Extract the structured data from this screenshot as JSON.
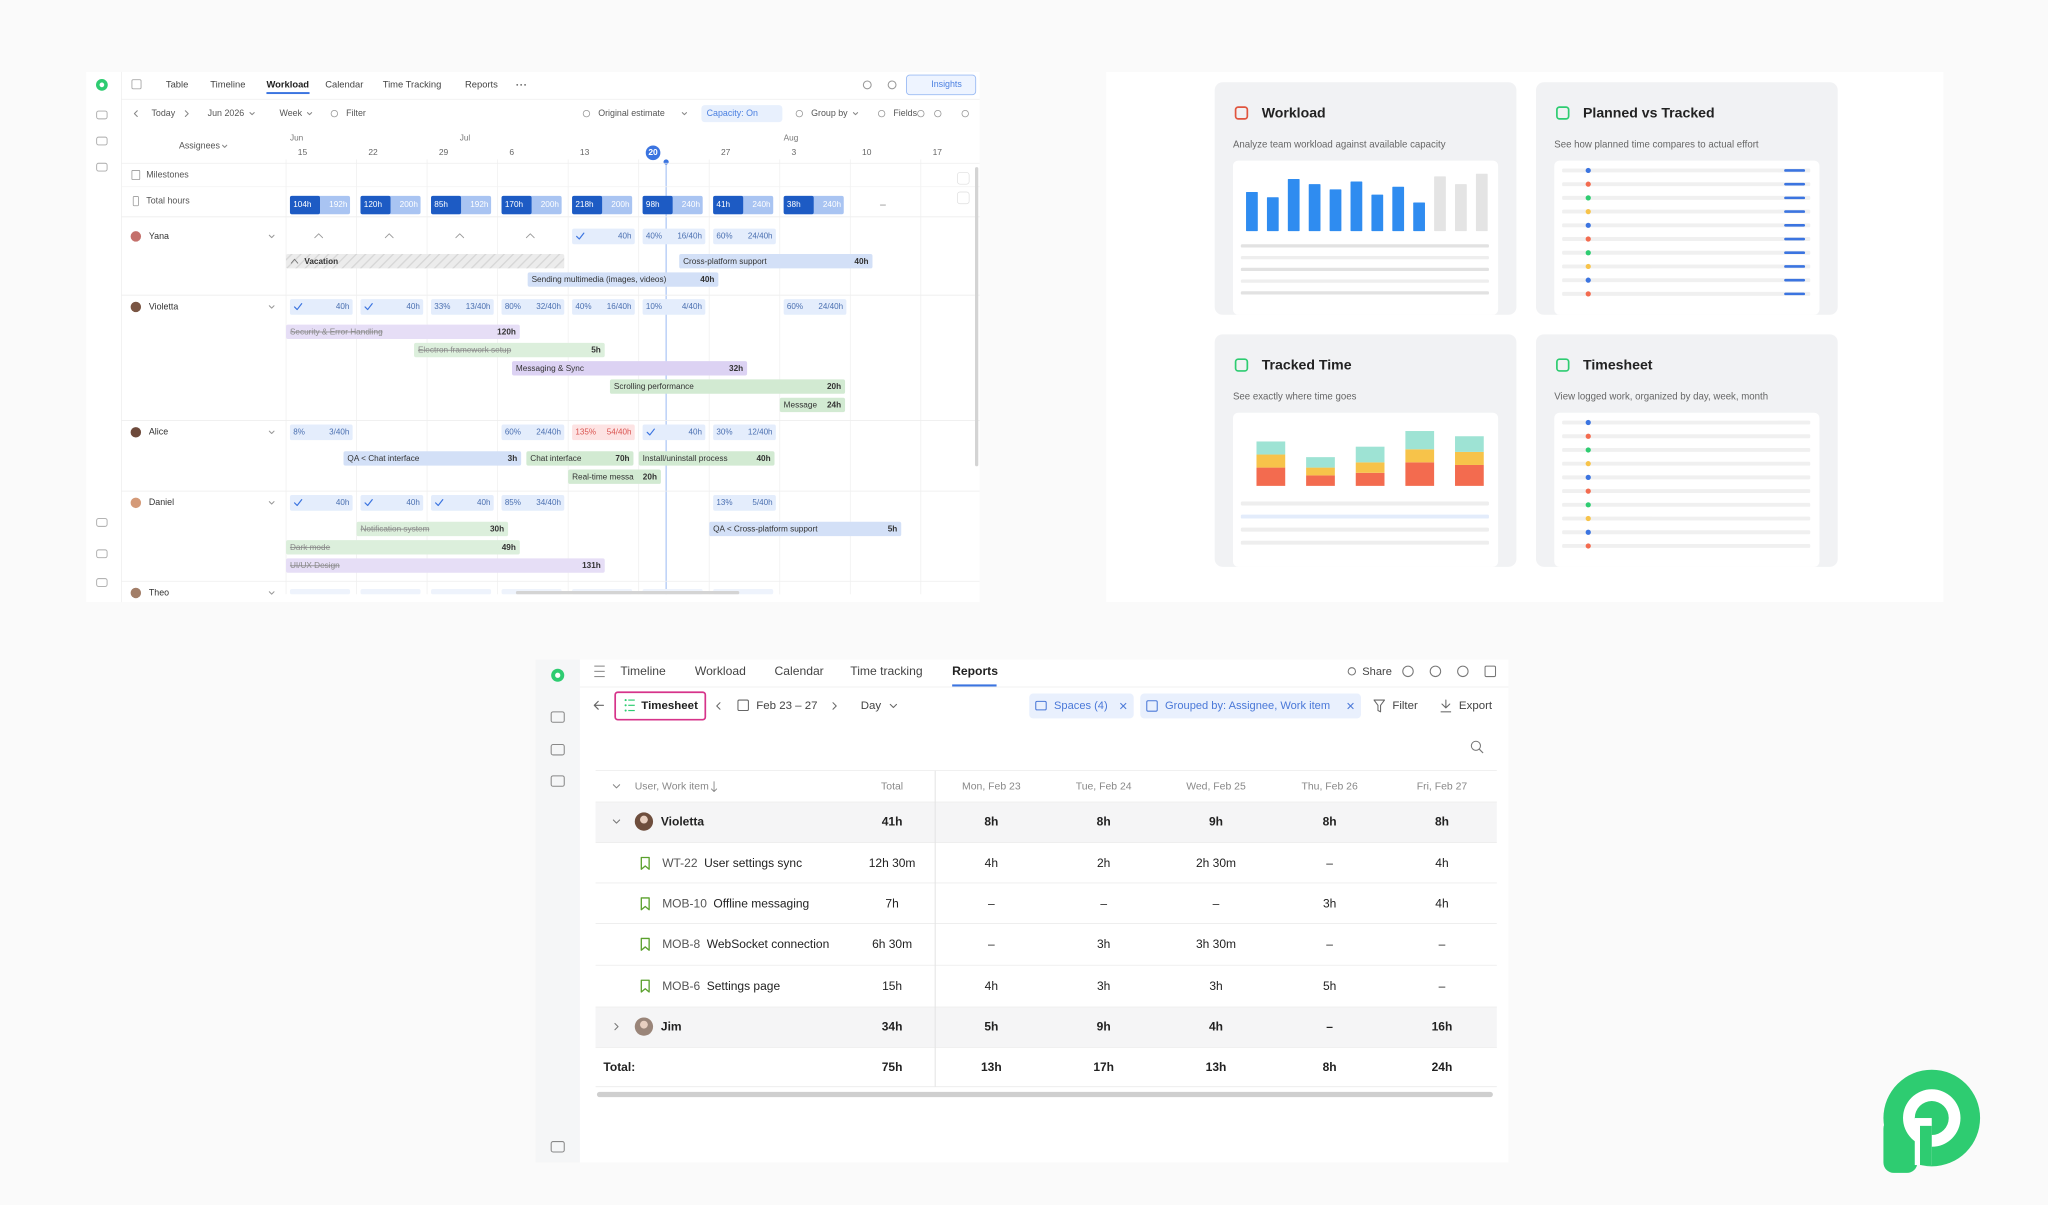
{
  "workload": {
    "tabs": [
      "Table",
      "Timeline",
      "Workload",
      "Calendar",
      "Time Tracking",
      "Reports"
    ],
    "toolbar": {
      "today": "Today",
      "month": "Jun 2026",
      "scale": "Week",
      "filter": "Filter",
      "estimate": "Original estimate",
      "capacity": "Capacity: On",
      "group": "Group by",
      "fields": "Fields",
      "insights": "Insights"
    },
    "assignees": "Assignees",
    "months": [
      "Jun",
      "Jul",
      "Aug"
    ],
    "dates": [
      "15",
      "22",
      "29",
      "6",
      "13",
      "20",
      "27",
      "3",
      "10",
      "17"
    ],
    "milestones": "Milestones",
    "total_hours": "Total hours",
    "totals": [
      {
        "used": "104h",
        "capacity": "192h"
      },
      {
        "used": "120h",
        "capacity": "200h"
      },
      {
        "used": "85h",
        "capacity": "192h"
      },
      {
        "used": "170h",
        "capacity": "200h"
      },
      {
        "used": "218h",
        "capacity": "200h"
      },
      {
        "used": "98h",
        "capacity": "240h"
      },
      {
        "used": "41h",
        "capacity": "240h"
      },
      {
        "used": "38h",
        "capacity": "240h"
      }
    ],
    "people": [
      {
        "name": "Yana",
        "chips": [
          {
            "hours": "40h"
          },
          {
            "percent": "40%",
            "hours": "16/40h"
          },
          {
            "percent": "60%",
            "hours": "24/40h"
          }
        ]
      },
      {
        "name": "Violetta",
        "chips": [
          {
            "hours": "40h"
          },
          {
            "hours": "40h"
          },
          {
            "percent": "33%",
            "hours": "13/40h"
          },
          {
            "percent": "80%",
            "hours": "32/40h"
          },
          {
            "percent": "40%",
            "hours": "16/40h"
          },
          {
            "percent": "10%",
            "hours": "4/40h"
          },
          {
            "percent": "60%",
            "hours": "24/40h"
          }
        ]
      },
      {
        "name": "Alice",
        "chips": [
          {
            "percent": "8%",
            "hours": "3/40h"
          },
          {
            "percent": "60%",
            "hours": "24/40h"
          },
          {
            "percent": "135%",
            "hours": "54/40h"
          },
          {
            "hours": "40h"
          },
          {
            "percent": "30%",
            "hours": "12/40h"
          }
        ]
      },
      {
        "name": "Daniel",
        "chips": [
          {
            "hours": "40h"
          },
          {
            "hours": "40h"
          },
          {
            "hours": "40h"
          },
          {
            "percent": "85%",
            "hours": "34/40h"
          },
          {
            "percent": "13%",
            "hours": "5/40h"
          }
        ]
      },
      {
        "name": "Theo",
        "chips": []
      }
    ],
    "bars": [
      {
        "label": "Vacation"
      },
      {
        "label": "Cross-platform support",
        "hours": "40h"
      },
      {
        "label": "Sending multimedia (images, videos)",
        "hours": "40h"
      },
      {
        "label": "Security & Error Handling",
        "hours": "120h"
      },
      {
        "label": "Electron framework setup",
        "hours": "5h"
      },
      {
        "label": "Messaging & Sync",
        "hours": "32h"
      },
      {
        "label": "Scrolling performance",
        "hours": "20h"
      },
      {
        "label": "Message",
        "hours": "24h"
      },
      {
        "label": "QA < Chat interface",
        "hours": "3h"
      },
      {
        "label": "Chat interface",
        "hours": "70h"
      },
      {
        "label": "Install/uninstall process",
        "hours": "40h"
      },
      {
        "label": "Real-time messa",
        "hours": "20h"
      },
      {
        "label": "Notification system",
        "hours": "30h"
      },
      {
        "label": "QA < Cross-platform support",
        "hours": "5h"
      },
      {
        "label": "Dark mode",
        "hours": "49h"
      },
      {
        "label": "UI/UX Design",
        "hours": "131h"
      }
    ]
  },
  "reports": {
    "cards": [
      {
        "title": "Workload",
        "description": "Analyze team workload against available capacity"
      },
      {
        "title": "Planned vs Tracked",
        "description": "See how planned time compares to actual effort"
      },
      {
        "title": "Tracked Time",
        "description": "See exactly where time goes"
      },
      {
        "title": "Timesheet",
        "description": "View logged work, organized by day, week, month"
      }
    ]
  },
  "timesheet": {
    "tabs": [
      "Timeline",
      "Workload",
      "Calendar",
      "Time tracking",
      "Reports"
    ],
    "share": "Share",
    "view": "Timesheet",
    "range": "Feb 23 – 27",
    "period": "Day",
    "spaces": "Spaces (4)",
    "grouped": "Grouped by: Assignee, Work item",
    "filter": "Filter",
    "export": "Export",
    "columns": [
      "User, Work item",
      "Total",
      "Mon, Feb 23",
      "Tue, Feb 24",
      "Wed, Feb 25",
      "Thu, Feb 26",
      "Fri, Feb 27"
    ],
    "rows": [
      {
        "label": "Violetta",
        "cells": [
          "41h",
          "8h",
          "8h",
          "9h",
          "8h",
          "8h"
        ]
      },
      {
        "key": "WT-22",
        "label": "User settings sync",
        "cells": [
          "12h 30m",
          "4h",
          "2h",
          "2h 30m",
          "–",
          "4h"
        ]
      },
      {
        "key": "MOB-10",
        "label": "Offline messaging",
        "cells": [
          "7h",
          "–",
          "–",
          "–",
          "3h",
          "4h"
        ]
      },
      {
        "key": "MOB-8",
        "label": "WebSocket connection",
        "cells": [
          "6h 30m",
          "–",
          "3h",
          "3h 30m",
          "–",
          "–"
        ]
      },
      {
        "key": "MOB-6",
        "label": "Settings page",
        "cells": [
          "15h",
          "4h",
          "3h",
          "3h",
          "5h",
          "–"
        ]
      },
      {
        "label": "Jim",
        "cells": [
          "34h",
          "5h",
          "9h",
          "4h",
          "–",
          "16h"
        ]
      }
    ],
    "total": {
      "label": "Total:",
      "cells": [
        "75h",
        "13h",
        "17h",
        "13h",
        "8h",
        "24h"
      ]
    }
  }
}
